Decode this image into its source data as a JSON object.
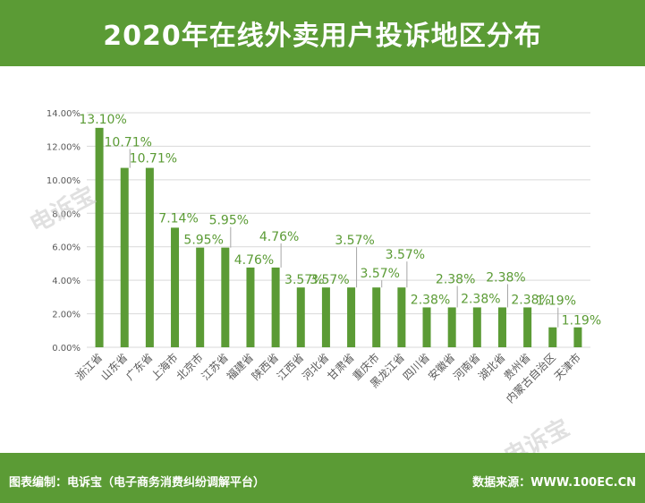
{
  "page": {
    "title": "2020年在线外卖用户投诉地区分布",
    "footer_left": "图表编制：电诉宝（电子商务消费纠纷调解平台）",
    "footer_right": "数据来源：WWW.100EC.CN",
    "watermark": "电诉宝"
  },
  "colors": {
    "header": "#5b9b35",
    "bar": "#5b9b35",
    "label": "#5b9b35",
    "grid": "#d9d9d9",
    "axis_text": "#595959"
  },
  "chart_data": {
    "type": "bar",
    "categories": [
      "浙江省",
      "山东省",
      "广东省",
      "上海市",
      "北京市",
      "江苏省",
      "福建省",
      "陕西省",
      "江西省",
      "河北省",
      "甘肃省",
      "重庆市",
      "黑龙江省",
      "四川省",
      "安徽省",
      "河南省",
      "湖北省",
      "贵州省",
      "内蒙古自治区",
      "天津市"
    ],
    "values": [
      13.1,
      10.71,
      10.71,
      7.14,
      5.95,
      5.95,
      4.76,
      4.76,
      3.57,
      3.57,
      3.57,
      3.57,
      3.57,
      2.38,
      2.38,
      2.38,
      2.38,
      2.38,
      1.19,
      1.19
    ],
    "value_labels": [
      "13.10%",
      "10.71%",
      "10.71%",
      "7.14%",
      "5.95%",
      "5.95%",
      "4.76%",
      "4.76%",
      "3.57%",
      "3.57%",
      "3.57%",
      "3.57%",
      "3.57%",
      "2.38%",
      "2.38%",
      "2.38%",
      "2.38%",
      "2.38%",
      "1.19%",
      "1.19%"
    ],
    "yticks": [
      "0.00%",
      "2.00%",
      "4.00%",
      "6.00%",
      "8.00%",
      "10.00%",
      "12.00%",
      "14.00%"
    ],
    "ylim": [
      0,
      14
    ],
    "grid": true
  }
}
